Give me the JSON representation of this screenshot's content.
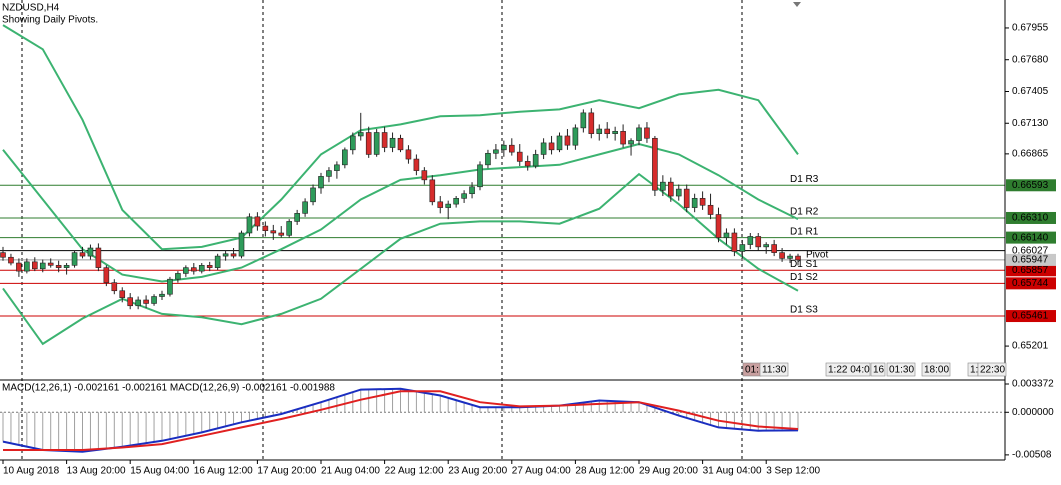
{
  "chart_data": {
    "type": "candlestick",
    "title": "NZDUSD,H4",
    "subtitle": "Showing Daily Pivots.",
    "ylim": [
      0.64916,
      0.68197
    ],
    "yticks": [
      0.67955,
      {
        "value": 0.6768,
        "label": "0.67680"
      },
      0.67405,
      {
        "value": 0.6713,
        "label": "0.67130"
      },
      0.66865,
      0.65201
    ],
    "categories": [
      "10 Aug 2018",
      null,
      null,
      null,
      null,
      null,
      null,
      null,
      "13 Aug 20:00",
      null,
      null,
      null,
      null,
      null,
      null,
      null,
      "15 Aug 04:00",
      null,
      null,
      null,
      null,
      null,
      null,
      null,
      "16 Aug 12:00",
      null,
      null,
      null,
      null,
      null,
      null,
      null,
      "17 Aug 20:00",
      null,
      null,
      null,
      null,
      null,
      null,
      null,
      "21 Aug 04:00",
      null,
      null,
      null,
      null,
      null,
      null,
      null,
      "22 Aug 12:00",
      null,
      null,
      null,
      null,
      null,
      null,
      null,
      "23 Aug 20:00",
      null,
      null,
      null,
      null,
      null,
      null,
      null,
      "27 Aug 04:00",
      null,
      null,
      null,
      null,
      null,
      null,
      null,
      "28 Aug 12:00",
      null,
      null,
      null,
      null,
      null,
      null,
      null,
      "29 Aug 20:00",
      null,
      null,
      null,
      null,
      null,
      null,
      null,
      "31 Aug 04:00",
      null,
      null,
      null,
      null,
      null,
      null,
      null,
      "3 Sep 12:00",
      null,
      null,
      null,
      null
    ],
    "up_color": "#2e9b5a",
    "down_color": "#d62c2c",
    "ohlc": [
      [
        0.6601,
        0.6606,
        0.6594,
        0.6597
      ],
      [
        0.6597,
        0.66,
        0.659,
        0.6592
      ],
      [
        0.6592,
        0.6596,
        0.658,
        0.6585
      ],
      [
        0.6585,
        0.6596,
        0.6583,
        0.6593
      ],
      [
        0.6593,
        0.6597,
        0.6585,
        0.6587
      ],
      [
        0.6587,
        0.6595,
        0.6584,
        0.6592
      ],
      [
        0.6592,
        0.6596,
        0.6588,
        0.659
      ],
      [
        0.659,
        0.6594,
        0.6584,
        0.6588
      ],
      [
        0.6588,
        0.6592,
        0.6582,
        0.659
      ],
      [
        0.659,
        0.6603,
        0.6588,
        0.6601
      ],
      [
        0.6601,
        0.6606,
        0.6596,
        0.6598
      ],
      [
        0.6598,
        0.6608,
        0.6595,
        0.6605
      ],
      [
        0.6605,
        0.6609,
        0.6585,
        0.6588
      ],
      [
        0.6588,
        0.659,
        0.6572,
        0.6575
      ],
      [
        0.6575,
        0.6578,
        0.6565,
        0.6568
      ],
      [
        0.6568,
        0.6571,
        0.6558,
        0.6562
      ],
      [
        0.6562,
        0.6566,
        0.6552,
        0.6555
      ],
      [
        0.6555,
        0.6563,
        0.6552,
        0.656
      ],
      [
        0.656,
        0.6564,
        0.6553,
        0.6557
      ],
      [
        0.6557,
        0.6565,
        0.6555,
        0.6563
      ],
      [
        0.6563,
        0.6568,
        0.656,
        0.6565
      ],
      [
        0.6565,
        0.658,
        0.6563,
        0.6578
      ],
      [
        0.6578,
        0.6585,
        0.6575,
        0.6583
      ],
      [
        0.6583,
        0.659,
        0.658,
        0.6588
      ],
      [
        0.6588,
        0.6592,
        0.6582,
        0.6585
      ],
      [
        0.6585,
        0.6592,
        0.6583,
        0.659
      ],
      [
        0.659,
        0.6593,
        0.6585,
        0.6588
      ],
      [
        0.6588,
        0.66,
        0.6586,
        0.6598
      ],
      [
        0.6598,
        0.6603,
        0.6594,
        0.66
      ],
      [
        0.66,
        0.6605,
        0.6596,
        0.6598
      ],
      [
        0.6598,
        0.662,
        0.6596,
        0.6618
      ],
      [
        0.6618,
        0.6635,
        0.6615,
        0.6632
      ],
      [
        0.6632,
        0.6636,
        0.662,
        0.6624
      ],
      [
        0.6624,
        0.6628,
        0.6615,
        0.662
      ],
      [
        0.662,
        0.6625,
        0.6612,
        0.6618
      ],
      [
        0.6618,
        0.6624,
        0.6614,
        0.6616
      ],
      [
        0.6616,
        0.663,
        0.6614,
        0.6628
      ],
      [
        0.6628,
        0.6638,
        0.6625,
        0.6635
      ],
      [
        0.6635,
        0.6648,
        0.6632,
        0.6645
      ],
      [
        0.6645,
        0.666,
        0.6642,
        0.6657
      ],
      [
        0.6657,
        0.667,
        0.6652,
        0.6667
      ],
      [
        0.6667,
        0.6675,
        0.6662,
        0.6672
      ],
      [
        0.6672,
        0.668,
        0.6665,
        0.6677
      ],
      [
        0.6677,
        0.6692,
        0.6674,
        0.669
      ],
      [
        0.669,
        0.6705,
        0.6686,
        0.6702
      ],
      [
        0.6702,
        0.6722,
        0.6698,
        0.6705
      ],
      [
        0.6705,
        0.671,
        0.6683,
        0.6686
      ],
      [
        0.6686,
        0.6708,
        0.6684,
        0.6705
      ],
      [
        0.6705,
        0.671,
        0.6688,
        0.6692
      ],
      [
        0.6692,
        0.6705,
        0.6688,
        0.67
      ],
      [
        0.67,
        0.6703,
        0.6688,
        0.669
      ],
      [
        0.669,
        0.6694,
        0.6678,
        0.6682
      ],
      [
        0.6682,
        0.6686,
        0.6668,
        0.6672
      ],
      [
        0.6672,
        0.6675,
        0.666,
        0.6664
      ],
      [
        0.6664,
        0.6668,
        0.6642,
        0.6645
      ],
      [
        0.6645,
        0.665,
        0.6635,
        0.664
      ],
      [
        0.664,
        0.6646,
        0.663,
        0.6643
      ],
      [
        0.6643,
        0.665,
        0.664,
        0.6648
      ],
      [
        0.6648,
        0.6655,
        0.6644,
        0.6652
      ],
      [
        0.6652,
        0.6662,
        0.6648,
        0.6658
      ],
      [
        0.6658,
        0.668,
        0.6655,
        0.6677
      ],
      [
        0.6677,
        0.669,
        0.6674,
        0.6687
      ],
      [
        0.6687,
        0.6695,
        0.6682,
        0.669
      ],
      [
        0.669,
        0.6698,
        0.6684,
        0.6694
      ],
      [
        0.6694,
        0.67,
        0.6685,
        0.6688
      ],
      [
        0.6688,
        0.6695,
        0.6676,
        0.668
      ],
      [
        0.668,
        0.6685,
        0.6672,
        0.6676
      ],
      [
        0.6676,
        0.669,
        0.6674,
        0.6686
      ],
      [
        0.6686,
        0.67,
        0.6682,
        0.6696
      ],
      [
        0.6696,
        0.6702,
        0.6686,
        0.669
      ],
      [
        0.669,
        0.6705,
        0.6688,
        0.6702
      ],
      [
        0.6702,
        0.6708,
        0.669,
        0.6694
      ],
      [
        0.6694,
        0.6712,
        0.669,
        0.6709
      ],
      [
        0.6709,
        0.6725,
        0.6705,
        0.6722
      ],
      [
        0.6722,
        0.6726,
        0.67,
        0.6704
      ],
      [
        0.6704,
        0.6712,
        0.6698,
        0.6708
      ],
      [
        0.6708,
        0.6714,
        0.67,
        0.6704
      ],
      [
        0.6704,
        0.671,
        0.6698,
        0.6706
      ],
      [
        0.6706,
        0.6712,
        0.6692,
        0.6695
      ],
      [
        0.6695,
        0.67,
        0.6685,
        0.6698
      ],
      [
        0.6698,
        0.6712,
        0.6694,
        0.6709
      ],
      [
        0.6709,
        0.6714,
        0.6696,
        0.67
      ],
      [
        0.67,
        0.6702,
        0.665,
        0.6655
      ],
      [
        0.6655,
        0.6668,
        0.665,
        0.6662
      ],
      [
        0.6662,
        0.6666,
        0.6645,
        0.665
      ],
      [
        0.665,
        0.666,
        0.6646,
        0.6656
      ],
      [
        0.6656,
        0.666,
        0.6636,
        0.664
      ],
      [
        0.664,
        0.6652,
        0.6636,
        0.6648
      ],
      [
        0.6648,
        0.6654,
        0.6638,
        0.6642
      ],
      [
        0.6642,
        0.6652,
        0.663,
        0.6634
      ],
      [
        0.6634,
        0.664,
        0.661,
        0.6614
      ],
      [
        0.6614,
        0.6622,
        0.6608,
        0.6618
      ],
      [
        0.6618,
        0.6622,
        0.6598,
        0.6602
      ],
      [
        0.6602,
        0.6612,
        0.6596,
        0.6608
      ],
      [
        0.6608,
        0.6618,
        0.6604,
        0.6615
      ],
      [
        0.6615,
        0.6618,
        0.6603,
        0.6606
      ],
      [
        0.6606,
        0.661,
        0.66,
        0.6608
      ],
      [
        0.6608,
        0.6612,
        0.6598,
        0.6601
      ],
      [
        0.6601,
        0.6605,
        0.6593,
        0.6596
      ],
      [
        0.6596,
        0.66,
        0.6592,
        0.6598
      ],
      [
        0.6598,
        0.66,
        0.659,
        0.65947
      ]
    ],
    "bands": [
      {
        "color": "#3cb371",
        "x": [
          0,
          5,
          10,
          15,
          20,
          25,
          30,
          35,
          40,
          45,
          50,
          55,
          60,
          65,
          70,
          75,
          80,
          85,
          90,
          95,
          100
        ],
        "values": [
          0.6798,
          0.6777,
          0.6716,
          0.6638,
          0.6604,
          0.6606,
          0.6614,
          0.6647,
          0.6686,
          0.6707,
          0.6712,
          0.6719,
          0.672,
          0.6723,
          0.6725,
          0.6733,
          0.6726,
          0.6738,
          0.6742,
          0.6733,
          0.6686
        ]
      },
      {
        "color": "#3cb371",
        "x": [
          0,
          5,
          10,
          15,
          20,
          25,
          30,
          35,
          40,
          45,
          50,
          55,
          60,
          65,
          70,
          75,
          80,
          85,
          90,
          95,
          100
        ],
        "values": [
          0.669,
          0.6647,
          0.6604,
          0.6582,
          0.6576,
          0.658,
          0.6588,
          0.6604,
          0.6621,
          0.6647,
          0.6664,
          0.6668,
          0.6673,
          0.6675,
          0.6677,
          0.6686,
          0.6695,
          0.6686,
          0.6668,
          0.6647,
          0.663
        ]
      },
      {
        "color": "#3cb371",
        "x": [
          0,
          5,
          10,
          15,
          20,
          25,
          30,
          35,
          40,
          45,
          50,
          55,
          60,
          65,
          70,
          75,
          80,
          85,
          90,
          95,
          100
        ],
        "values": [
          0.657,
          0.6522,
          0.6544,
          0.6561,
          0.6548,
          0.6545,
          0.6539,
          0.6548,
          0.6561,
          0.6587,
          0.6613,
          0.6626,
          0.6628,
          0.6628,
          0.6626,
          0.6639,
          0.6669,
          0.6643,
          0.6613,
          0.6587,
          0.6568
        ]
      }
    ],
    "levels": {
      "names": [
        "D1  R3",
        "D1  R2",
        "D1  R1",
        "Pivot",
        "D1  S1",
        "D1  S2",
        "D1  S3"
      ],
      "values": [
        0.66593,
        0.6631,
        0.6614,
        0.66027,
        0.65857,
        0.65744,
        0.65461
      ],
      "value_labels": [
        "0.66593",
        "0.66310",
        "0.66140",
        "0.66027",
        "0.65857",
        "0.65744",
        "0.65461"
      ],
      "colors": [
        "#2f7d2f",
        "#2f7d2f",
        "#2f7d2f",
        "#000000",
        "#cc0000",
        "#cc0000",
        "#cc0000"
      ]
    },
    "bid": 0.65947,
    "time_badges": [
      "01:",
      "11:30",
      "1:22 04:0",
      "16",
      "01:30",
      "18:00",
      "1:",
      "22:30"
    ],
    "macd": {
      "title": "MACD(12,26,1) -0.002161 -0.002161 MACD(12,26,9) -0.002161 -0.001988",
      "ylim": [
        -0.00569,
        0.00373
      ],
      "yticks": [
        0.003372,
        {
          "value": 0,
          "label": "0.000000"
        },
        -0.00508
      ],
      "histogram_color": "#a0a0a0",
      "histogram": [
        -0.0035,
        -0.0037,
        -0.0039,
        -0.0041,
        -0.0043,
        -0.0045,
        -0.0045,
        -0.0046,
        -0.0046,
        -0.0047,
        -0.0047,
        -0.0046,
        -0.0045,
        -0.0044,
        -0.0042,
        -0.0041,
        -0.004,
        -0.0038,
        -0.0037,
        -0.0035,
        -0.0034,
        -0.0032,
        -0.003,
        -0.0028,
        -0.0026,
        -0.0024,
        -0.0022,
        -0.0019,
        -0.0017,
        -0.0014,
        -0.0012,
        -0.001,
        -0.0008,
        -0.0006,
        -0.0004,
        -0.0002,
        0.0001,
        0.0004,
        0.0006,
        0.0009,
        0.0012,
        0.0015,
        0.0018,
        0.0021,
        0.0024,
        0.0027,
        0.0027,
        0.0027,
        0.0028,
        0.0028,
        0.0028,
        0.0026,
        0.0025,
        0.0023,
        0.0022,
        0.002,
        0.0017,
        0.0014,
        0.0012,
        0.0009,
        0.0006,
        0.0006,
        0.0006,
        0.0006,
        0.0006,
        0.0006,
        0.0006,
        0.0007,
        0.0007,
        0.0008,
        0.0008,
        0.0009,
        0.001,
        0.0012,
        0.0013,
        0.0014,
        0.0014,
        0.0013,
        0.0013,
        0.0012,
        0.0012,
        0.0009,
        0.0006,
        0.0002,
        -0.0001,
        -0.0004,
        -0.0007,
        -0.001,
        -0.0012,
        -0.0015,
        -0.0018,
        -0.0019,
        -0.002,
        -0.002,
        -0.0021,
        -0.0022,
        -0.0022,
        -0.0022,
        -0.0022,
        -0.0022,
        -0.002161
      ],
      "series": [
        {
          "color": "#1a2ec0",
          "x": [
            0,
            5,
            10,
            15,
            20,
            25,
            30,
            35,
            40,
            45,
            50,
            55,
            60,
            65,
            70,
            75,
            80,
            85,
            90,
            95,
            100
          ],
          "values": [
            -0.0035,
            -0.0045,
            -0.0047,
            -0.0041,
            -0.0034,
            -0.0024,
            -0.0012,
            -0.0002,
            0.0012,
            0.0027,
            0.0028,
            0.002,
            0.0006,
            0.0006,
            0.0008,
            0.0014,
            0.0012,
            -0.0004,
            -0.0018,
            -0.0022,
            -0.002161
          ]
        },
        {
          "color": "#e02020",
          "x": [
            0,
            5,
            10,
            15,
            20,
            25,
            30,
            35,
            40,
            45,
            50,
            55,
            60,
            65,
            70,
            75,
            80,
            85,
            90,
            95,
            100
          ],
          "values": [
            -0.0045,
            -0.0045,
            -0.0045,
            -0.0042,
            -0.0038,
            -0.0028,
            -0.0018,
            -0.0008,
            0.0003,
            0.0015,
            0.0025,
            0.0025,
            0.0012,
            0.0007,
            0.0008,
            0.001,
            0.0012,
            0.0002,
            -0.001,
            -0.0017,
            -0.001988
          ]
        }
      ]
    }
  }
}
